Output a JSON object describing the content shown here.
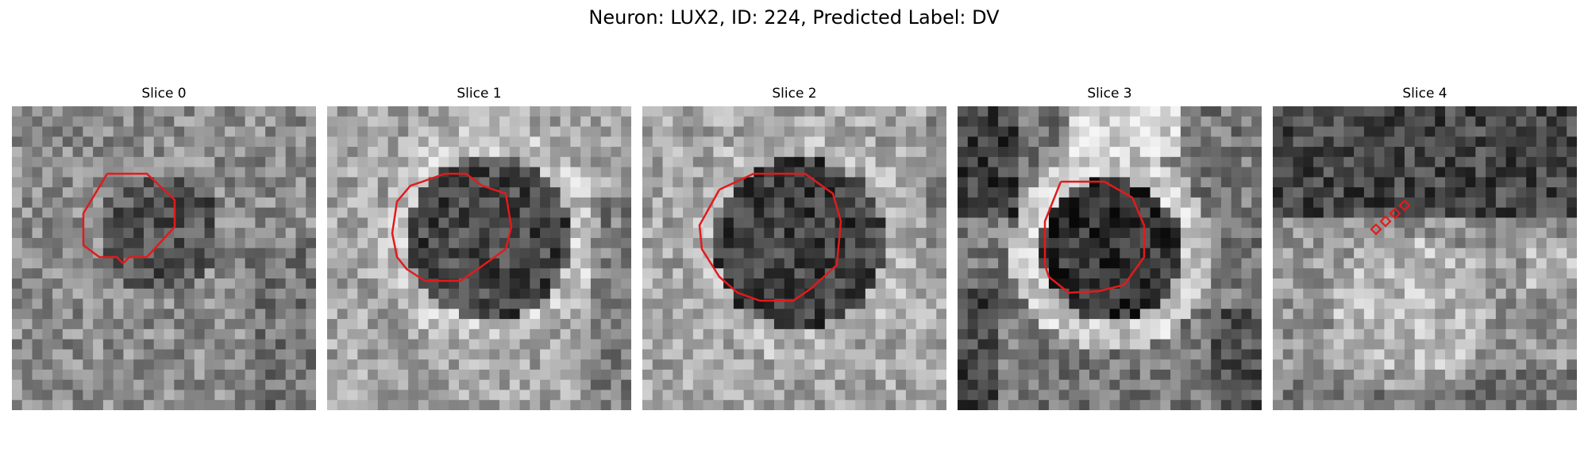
{
  "figure": {
    "title": "Neuron: LUX2, ID: 224, Predicted Label: DV",
    "contour_color": "#e31a1c",
    "colormap": "grayscale"
  },
  "panels": [
    {
      "label": "Slice 0",
      "contour": "small-ring",
      "brightness": "gray"
    },
    {
      "label": "Slice 1",
      "contour": "large-ring",
      "brightness": "light-rim"
    },
    {
      "label": "Slice 2",
      "contour": "large-ring",
      "brightness": "light-rim"
    },
    {
      "label": "Slice 3",
      "contour": "medium-ring",
      "brightness": "high-contrast"
    },
    {
      "label": "Slice 4",
      "contour": "tiny-diamonds",
      "brightness": "dark-top"
    }
  ]
}
